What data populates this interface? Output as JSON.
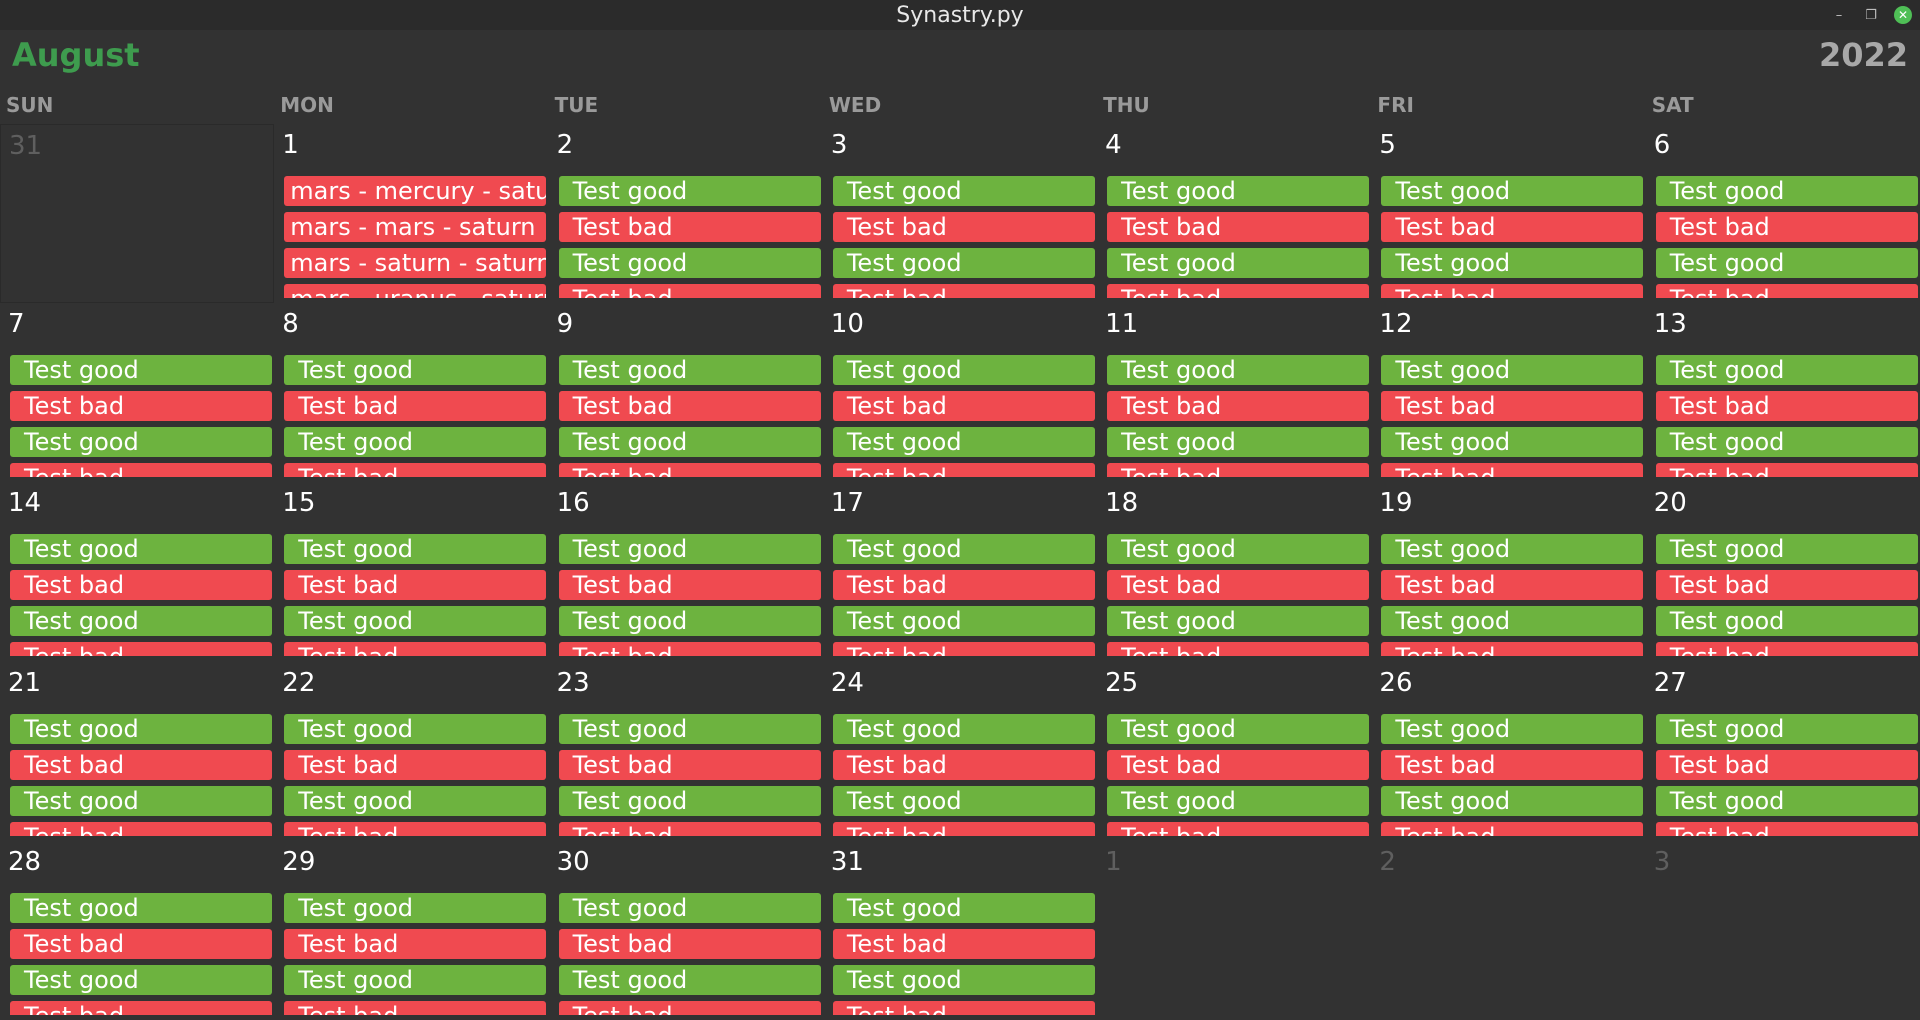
{
  "window": {
    "title": "Synastry.py"
  },
  "header": {
    "month": "August",
    "year": "2022"
  },
  "colors": {
    "good": "#6db33f",
    "bad": "#f04a50",
    "month_accent": "#3e9c4e"
  },
  "weekdays": [
    "SUN",
    "MON",
    "TUE",
    "WED",
    "THU",
    "FRI",
    "SAT"
  ],
  "event_labels": {
    "good": "Test good",
    "bad": "Test bad"
  },
  "days": [
    {
      "label": "31",
      "current": false,
      "events": []
    },
    {
      "label": "1",
      "current": true,
      "events": [
        {
          "text": "mars - mercury - saturn",
          "kind": "bad"
        },
        {
          "text": "mars - mars - saturn",
          "kind": "bad"
        },
        {
          "text": "mars - saturn - saturn",
          "kind": "bad"
        },
        {
          "text": "mars - uranus - saturn",
          "kind": "bad"
        }
      ]
    },
    {
      "label": "2",
      "current": true,
      "pattern": true
    },
    {
      "label": "3",
      "current": true,
      "pattern": true
    },
    {
      "label": "4",
      "current": true,
      "pattern": true
    },
    {
      "label": "5",
      "current": true,
      "pattern": true
    },
    {
      "label": "6",
      "current": true,
      "pattern": true
    },
    {
      "label": "7",
      "current": true,
      "pattern": true
    },
    {
      "label": "8",
      "current": true,
      "pattern": true
    },
    {
      "label": "9",
      "current": true,
      "pattern": true
    },
    {
      "label": "10",
      "current": true,
      "pattern": true
    },
    {
      "label": "11",
      "current": true,
      "pattern": true
    },
    {
      "label": "12",
      "current": true,
      "pattern": true
    },
    {
      "label": "13",
      "current": true,
      "pattern": true
    },
    {
      "label": "14",
      "current": true,
      "pattern": true
    },
    {
      "label": "15",
      "current": true,
      "pattern": true
    },
    {
      "label": "16",
      "current": true,
      "pattern": true
    },
    {
      "label": "17",
      "current": true,
      "pattern": true
    },
    {
      "label": "18",
      "current": true,
      "pattern": true
    },
    {
      "label": "19",
      "current": true,
      "pattern": true
    },
    {
      "label": "20",
      "current": true,
      "pattern": true
    },
    {
      "label": "21",
      "current": true,
      "pattern": true
    },
    {
      "label": "22",
      "current": true,
      "pattern": true
    },
    {
      "label": "23",
      "current": true,
      "pattern": true
    },
    {
      "label": "24",
      "current": true,
      "pattern": true
    },
    {
      "label": "25",
      "current": true,
      "pattern": true
    },
    {
      "label": "26",
      "current": true,
      "pattern": true
    },
    {
      "label": "27",
      "current": true,
      "pattern": true
    },
    {
      "label": "28",
      "current": true,
      "pattern": true
    },
    {
      "label": "29",
      "current": true,
      "pattern": true
    },
    {
      "label": "30",
      "current": true,
      "pattern": true
    },
    {
      "label": "31",
      "current": true,
      "pattern": true
    },
    {
      "label": "1",
      "current": false,
      "events": []
    },
    {
      "label": "2",
      "current": false,
      "events": []
    },
    {
      "label": "3",
      "current": false,
      "events": []
    }
  ]
}
